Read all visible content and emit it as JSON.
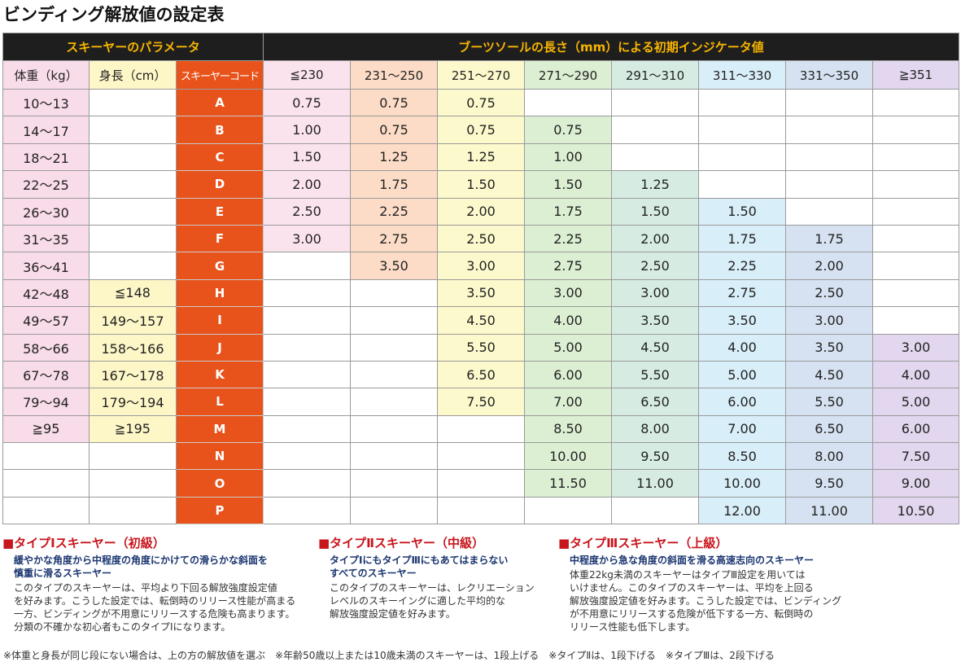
{
  "title": "ビンディング解放値の設定表",
  "table": {
    "group_headers": {
      "skier": "スキーヤーのパラメータ",
      "boot": "ブーツソールの長さ（mm）による初期インジケータ値"
    },
    "col_headers": {
      "weight": "体重（kg）",
      "height": "身長（cm）",
      "code": "スキーヤーコード",
      "boot_cols": [
        "≦230",
        "231～250",
        "251～270",
        "271～290",
        "291～310",
        "311～330",
        "331～350",
        "≧351"
      ]
    },
    "rows": [
      {
        "weight": "10～13",
        "height": "",
        "code": "A",
        "values": [
          "0.75",
          "0.75",
          "0.75",
          "",
          "",
          "",
          "",
          ""
        ]
      },
      {
        "weight": "14～17",
        "height": "",
        "code": "B",
        "values": [
          "1.00",
          "0.75",
          "0.75",
          "0.75",
          "",
          "",
          "",
          ""
        ]
      },
      {
        "weight": "18～21",
        "height": "",
        "code": "C",
        "values": [
          "1.50",
          "1.25",
          "1.25",
          "1.00",
          "",
          "",
          "",
          ""
        ]
      },
      {
        "weight": "22～25",
        "height": "",
        "code": "D",
        "values": [
          "2.00",
          "1.75",
          "1.50",
          "1.50",
          "1.25",
          "",
          "",
          ""
        ]
      },
      {
        "weight": "26～30",
        "height": "",
        "code": "E",
        "values": [
          "2.50",
          "2.25",
          "2.00",
          "1.75",
          "1.50",
          "1.50",
          "",
          ""
        ]
      },
      {
        "weight": "31～35",
        "height": "",
        "code": "F",
        "values": [
          "3.00",
          "2.75",
          "2.50",
          "2.25",
          "2.00",
          "1.75",
          "1.75",
          ""
        ]
      },
      {
        "weight": "36～41",
        "height": "",
        "code": "G",
        "values": [
          "",
          "3.50",
          "3.00",
          "2.75",
          "2.50",
          "2.25",
          "2.00",
          ""
        ]
      },
      {
        "weight": "42～48",
        "height": "≦148",
        "code": "H",
        "values": [
          "",
          "",
          "3.50",
          "3.00",
          "3.00",
          "2.75",
          "2.50",
          ""
        ]
      },
      {
        "weight": "49～57",
        "height": "149～157",
        "code": "I",
        "values": [
          "",
          "",
          "4.50",
          "4.00",
          "3.50",
          "3.50",
          "3.00",
          ""
        ]
      },
      {
        "weight": "58～66",
        "height": "158～166",
        "code": "J",
        "values": [
          "",
          "",
          "5.50",
          "5.00",
          "4.50",
          "4.00",
          "3.50",
          "3.00"
        ]
      },
      {
        "weight": "67～78",
        "height": "167～178",
        "code": "K",
        "values": [
          "",
          "",
          "6.50",
          "6.00",
          "5.50",
          "5.00",
          "4.50",
          "4.00"
        ]
      },
      {
        "weight": "79～94",
        "height": "179～194",
        "code": "L",
        "values": [
          "",
          "",
          "7.50",
          "7.00",
          "6.50",
          "6.00",
          "5.50",
          "5.00"
        ]
      },
      {
        "weight": "≧95",
        "height": "≧195",
        "code": "M",
        "values": [
          "",
          "",
          "",
          "8.50",
          "8.00",
          "7.00",
          "6.50",
          "6.00"
        ]
      },
      {
        "weight": "",
        "height": "",
        "code": "N",
        "values": [
          "",
          "",
          "",
          "10.00",
          "9.50",
          "8.50",
          "8.00",
          "7.50"
        ]
      },
      {
        "weight": "",
        "height": "",
        "code": "O",
        "values": [
          "",
          "",
          "",
          "11.50",
          "11.00",
          "10.00",
          "9.50",
          "9.00"
        ]
      },
      {
        "weight": "",
        "height": "",
        "code": "P",
        "values": [
          "",
          "",
          "",
          "",
          "",
          "12.00",
          "11.00",
          "10.50"
        ]
      }
    ]
  },
  "notes": [
    {
      "title": "■タイプⅠスキーヤー（初級）",
      "subtitle": [
        "緩やかな角度から中程度の角度にかけての滑らかな斜面を",
        "慎重に滑るスキーヤー"
      ],
      "body": [
        "このタイプのスキーヤーは、平均より下回る解放強度設定値",
        "を好みます。こうした設定では、転倒時のリリース性能が高まる",
        "一方、ビンディングが不用意にリリースする危険も高まります。",
        "分類の不確かな初心者もこのタイプⅠになります。"
      ]
    },
    {
      "title": "■タイプⅡスキーヤー（中級）",
      "subtitle": [
        "タイプⅠにもタイプⅢにもあてはまらない",
        "すべてのスキーヤー"
      ],
      "body": [
        "このタイプのスキーヤーは、レクリエーション",
        "レベルのスキーイングに適した平均的な",
        "解放強度設定値を好みます。"
      ]
    },
    {
      "title": "■タイプⅢスキーヤー（上級）",
      "subtitle": [
        "中程度から急な角度の斜面を滑る高速志向のスキーヤー"
      ],
      "body": [
        "体重22kg未満のスキーヤーはタイプⅢ設定を用いては",
        "いけません。このタイプのスキーヤーは、平均を上回る",
        "解放強度設定値を好みます。こうした設定では、ビンディング",
        "が不用意にリリースする危険が低下する一方、転倒時の",
        "リリース性能も低下します。"
      ]
    }
  ],
  "footer": "※体重と身長が同じ段にない場合は、上の方の解放値を選ぶ　※年齢50歳以上または10歳未満のスキーヤーは、1段上げる　※タイプⅡは、1段下げる　※タイプⅢは、2段下げる"
}
